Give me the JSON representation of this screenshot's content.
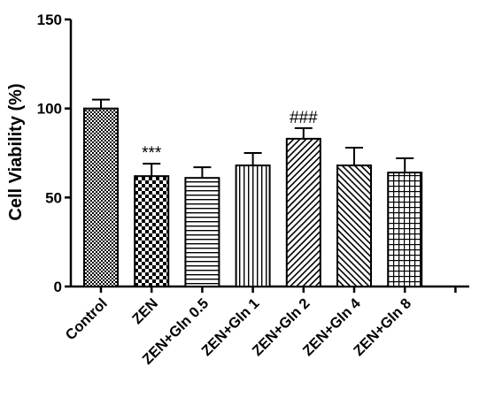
{
  "chart_data": {
    "type": "bar",
    "ylabel": "Cell Viability (%)",
    "xlabel": "",
    "title": "",
    "ylim": [
      0,
      150
    ],
    "yticks": [
      0,
      50,
      100,
      150
    ],
    "grid": false,
    "categories": [
      "Control",
      "ZEN",
      "ZEN+Gln 0.5",
      "ZEN+Gln 1",
      "ZEN+Gln 2",
      "ZEN+Gln 4",
      "ZEN+Gln 8"
    ],
    "values": [
      100,
      62,
      61,
      68,
      83,
      68,
      64
    ],
    "errors": [
      5,
      7,
      6,
      7,
      6,
      10,
      8
    ],
    "annotations": [
      {
        "category": "ZEN",
        "text": "***"
      },
      {
        "category": "ZEN+Gln 2",
        "text": "###"
      }
    ],
    "fill_patterns": [
      "checker-fine",
      "checker-coarse",
      "horizontal-lines",
      "vertical-lines",
      "diagonal-right",
      "diagonal-left",
      "grid"
    ],
    "bar_color": "#000000"
  }
}
